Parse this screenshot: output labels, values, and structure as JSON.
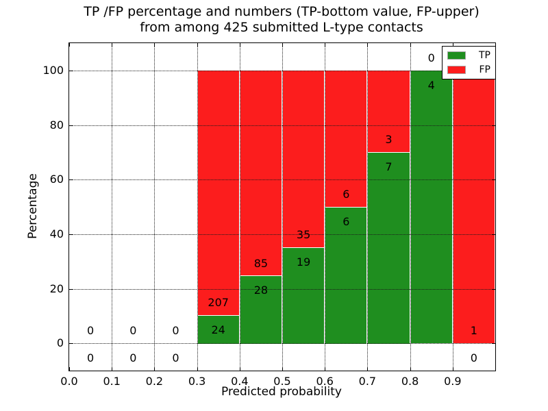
{
  "title": {
    "line1": "TP /FP percentage and numbers (TP-bottom value, FP-upper)",
    "line2": "from among 425 submitted L-type contacts"
  },
  "chart_data": {
    "type": "bar",
    "stacked": true,
    "orientation": "vertical",
    "title": "TP /FP percentage and numbers (TP-bottom value, FP-upper) from among 425 submitted L-type contacts",
    "xlabel": "Predicted probability",
    "ylabel": "Percentage",
    "xlim": [
      0.0,
      1.0
    ],
    "ylim": [
      -10,
      110
    ],
    "xticks": [
      "0.0",
      "0.1",
      "0.2",
      "0.3",
      "0.4",
      "0.5",
      "0.6",
      "0.7",
      "0.8",
      "0.9"
    ],
    "yticks": [
      "0",
      "20",
      "40",
      "60",
      "80",
      "100"
    ],
    "ytick_values": [
      0,
      20,
      40,
      60,
      80,
      100
    ],
    "xtick_values": [
      0.0,
      0.1,
      0.2,
      0.3,
      0.4,
      0.5,
      0.6,
      0.7,
      0.8,
      0.9
    ],
    "grid": "dotted, both axes",
    "bin_width": 0.1,
    "bin_starts": [
      0.0,
      0.1,
      0.2,
      0.3,
      0.4,
      0.5,
      0.6,
      0.7,
      0.8,
      0.9
    ],
    "total_contacts": 425,
    "series": [
      {
        "name": "TP",
        "color": "#1f8e1f",
        "counts": [
          0,
          0,
          0,
          24,
          28,
          19,
          6,
          7,
          4,
          0
        ]
      },
      {
        "name": "FP",
        "color": "#fc1d1d",
        "counts": [
          0,
          0,
          0,
          207,
          85,
          35,
          6,
          3,
          0,
          1
        ]
      }
    ],
    "tp_percent": [
      null,
      null,
      null,
      10.39,
      24.78,
      35.19,
      50.0,
      70.0,
      100.0,
      0.0
    ],
    "legend": {
      "position": "upper right",
      "entries": [
        {
          "label": "TP",
          "color": "#1f8e1f"
        },
        {
          "label": "FP",
          "color": "#fc1d1d"
        }
      ]
    },
    "colors": {
      "tp_green": "#1f8e1f",
      "fp_red": "#fc1d1d",
      "grid": "#1a1a1a",
      "background": "#ffffff"
    }
  }
}
